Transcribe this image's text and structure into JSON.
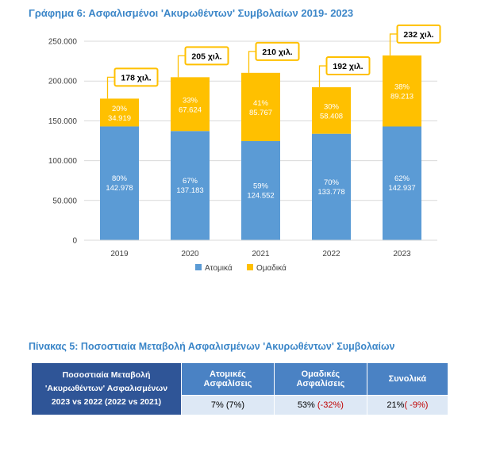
{
  "chart_title": "Γράφημα 6: Ασφαλισμένοι 'Ακυρωθέντων' Συμβολαίων 2019- 2023",
  "chart_data": {
    "type": "bar",
    "stacked": true,
    "title": "Γράφημα 6: Ασφαλισμένοι 'Ακυρωθέντων' Συμβολαίων 2019- 2023",
    "categories": [
      "2019",
      "2020",
      "2021",
      "2022",
      "2023"
    ],
    "series": [
      {
        "name": "Ατομικά",
        "color": "#5b9bd5",
        "values": [
          142978,
          137183,
          124552,
          133778,
          142937
        ],
        "value_labels": [
          "142.978",
          "137.183",
          "124.552",
          "133.778",
          "142.937"
        ],
        "pct_labels": [
          "80%",
          "67%",
          "59%",
          "70%",
          "62%"
        ]
      },
      {
        "name": "Ομαδικά",
        "color": "#ffc000",
        "values": [
          34919,
          67624,
          85767,
          58408,
          89213
        ],
        "value_labels": [
          "34.919",
          "67.624",
          "85.767",
          "58.408",
          "89.213"
        ],
        "pct_labels": [
          "20%",
          "33%",
          "41%",
          "30%",
          "38%"
        ]
      }
    ],
    "totals_labels": [
      "178 χιλ.",
      "205 χιλ.",
      "210 χιλ.",
      "192 χιλ.",
      "232 χιλ."
    ],
    "ylim": [
      0,
      250000
    ],
    "yticks": [
      0,
      50000,
      100000,
      150000,
      200000,
      250000
    ],
    "ytick_labels": [
      "0",
      "50.000",
      "100.000",
      "150.000",
      "200.000",
      "250.000"
    ],
    "grid": true,
    "legend": "bottom",
    "xlabel": "",
    "ylabel": ""
  },
  "table": {
    "title": "Πίνακας 5: Ποσοστιαία Μεταβολή Ασφαλισμένων 'Ακυρωθέντων' Συμβολαίων",
    "row_header_line1": "Ποσοστιαία Μεταβολή",
    "row_header_line2": "'Ακυρωθέντων' Ασφαλισμένων",
    "row_header_line3": "2023 vs 2022 (2022 vs 2021)",
    "col1_line1": "Ατομικές",
    "col1_line2": "Ασφαλίσεις",
    "col2_line1": "Ομαδικές",
    "col2_line2": "Ασφαλίσεις",
    "col3": "Συνολικά",
    "cell1": "7% (7%)",
    "cell2_main": "53% ",
    "cell2_prev": "(-32%)",
    "cell3_main": "21%",
    "cell3_prev": "( -9%)",
    "neg_color": "#c00000"
  }
}
